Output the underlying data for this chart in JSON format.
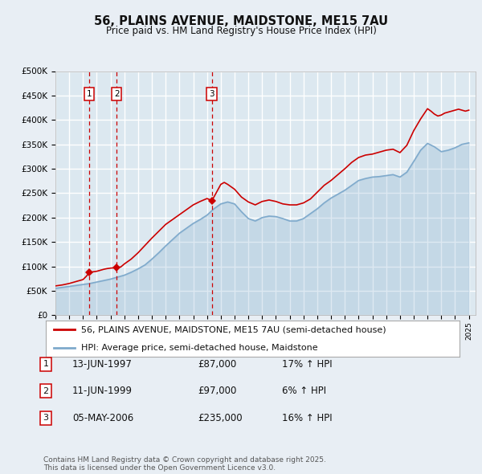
{
  "title": "56, PLAINS AVENUE, MAIDSTONE, ME15 7AU",
  "subtitle": "Price paid vs. HM Land Registry's House Price Index (HPI)",
  "legend_line1": "56, PLAINS AVENUE, MAIDSTONE, ME15 7AU (semi-detached house)",
  "legend_line2": "HPI: Average price, semi-detached house, Maidstone",
  "footnote": "Contains HM Land Registry data © Crown copyright and database right 2025.\nThis data is licensed under the Open Government Licence v3.0.",
  "transactions": [
    {
      "num": 1,
      "date": "13-JUN-1997",
      "price": 87000,
      "hpi_rel": "17% ↑ HPI",
      "x": 1997.44
    },
    {
      "num": 2,
      "date": "11-JUN-1999",
      "price": 97000,
      "hpi_rel": "6% ↑ HPI",
      "x": 1999.44
    },
    {
      "num": 3,
      "date": "05-MAY-2006",
      "price": 235000,
      "hpi_rel": "16% ↑ HPI",
      "x": 2006.34
    }
  ],
  "red_line_color": "#cc0000",
  "blue_line_color": "#7faacc",
  "dashed_line_color": "#cc0000",
  "background_color": "#e8eef4",
  "plot_bg_color": "#dce8f0",
  "grid_color": "#ffffff",
  "ylim": [
    0,
    500000
  ],
  "xlim_start": 1995.0,
  "xlim_end": 2025.5,
  "hpi_years": [
    1995.0,
    1995.5,
    1996.0,
    1996.5,
    1997.0,
    1997.5,
    1998.0,
    1998.5,
    1999.0,
    1999.5,
    2000.0,
    2000.5,
    2001.0,
    2001.5,
    2002.0,
    2002.5,
    2003.0,
    2003.5,
    2004.0,
    2004.5,
    2005.0,
    2005.5,
    2006.0,
    2006.5,
    2007.0,
    2007.5,
    2008.0,
    2008.5,
    2009.0,
    2009.5,
    2010.0,
    2010.5,
    2011.0,
    2011.5,
    2012.0,
    2012.5,
    2013.0,
    2013.5,
    2014.0,
    2014.5,
    2015.0,
    2015.5,
    2016.0,
    2016.5,
    2017.0,
    2017.5,
    2018.0,
    2018.5,
    2019.0,
    2019.5,
    2020.0,
    2020.5,
    2021.0,
    2021.5,
    2022.0,
    2022.5,
    2023.0,
    2023.5,
    2024.0,
    2024.5,
    2025.0
  ],
  "hpi_values": [
    55000,
    57000,
    59000,
    61000,
    63000,
    65000,
    68000,
    71000,
    74000,
    78000,
    82000,
    88000,
    95000,
    103000,
    115000,
    128000,
    142000,
    155000,
    168000,
    178000,
    188000,
    196000,
    205000,
    218000,
    228000,
    232000,
    228000,
    212000,
    198000,
    193000,
    200000,
    203000,
    202000,
    198000,
    193000,
    193000,
    198000,
    208000,
    218000,
    230000,
    240000,
    248000,
    256000,
    266000,
    276000,
    280000,
    283000,
    284000,
    286000,
    288000,
    283000,
    293000,
    315000,
    338000,
    352000,
    345000,
    335000,
    338000,
    343000,
    350000,
    353000
  ],
  "red_years": [
    1995.0,
    1995.25,
    1995.5,
    1995.75,
    1996.0,
    1996.25,
    1996.5,
    1996.75,
    1997.0,
    1997.25,
    1997.44,
    1997.5,
    1997.75,
    1998.0,
    1998.25,
    1998.5,
    1998.75,
    1999.0,
    1999.25,
    1999.44,
    1999.5,
    1999.75,
    2000.0,
    2000.5,
    2001.0,
    2001.5,
    2002.0,
    2002.5,
    2003.0,
    2003.5,
    2004.0,
    2004.5,
    2005.0,
    2005.5,
    2006.0,
    2006.34,
    2006.5,
    2007.0,
    2007.25,
    2007.5,
    2008.0,
    2008.5,
    2009.0,
    2009.5,
    2010.0,
    2010.5,
    2011.0,
    2011.5,
    2012.0,
    2012.5,
    2013.0,
    2013.5,
    2014.0,
    2014.5,
    2015.0,
    2015.5,
    2016.0,
    2016.5,
    2017.0,
    2017.5,
    2018.0,
    2018.5,
    2019.0,
    2019.5,
    2020.0,
    2020.5,
    2021.0,
    2021.5,
    2022.0,
    2022.25,
    2022.5,
    2022.75,
    2023.0,
    2023.25,
    2023.5,
    2023.75,
    2024.0,
    2024.25,
    2024.5,
    2024.75,
    2025.0
  ],
  "red_values": [
    60000,
    61000,
    62000,
    63500,
    65000,
    67000,
    69000,
    71000,
    73000,
    80000,
    87000,
    87500,
    89000,
    90000,
    92000,
    94000,
    95500,
    96500,
    97000,
    97000,
    97500,
    99000,
    105000,
    115000,
    128000,
    143000,
    158000,
    172000,
    186000,
    196000,
    206000,
    216000,
    226000,
    233000,
    239000,
    235000,
    242000,
    268000,
    272000,
    268000,
    258000,
    242000,
    232000,
    226000,
    233000,
    236000,
    233000,
    228000,
    226000,
    226000,
    230000,
    238000,
    252000,
    266000,
    276000,
    288000,
    300000,
    313000,
    323000,
    328000,
    330000,
    334000,
    338000,
    340000,
    333000,
    348000,
    378000,
    402000,
    423000,
    418000,
    412000,
    408000,
    410000,
    414000,
    416000,
    418000,
    420000,
    422000,
    420000,
    418000,
    420000
  ]
}
